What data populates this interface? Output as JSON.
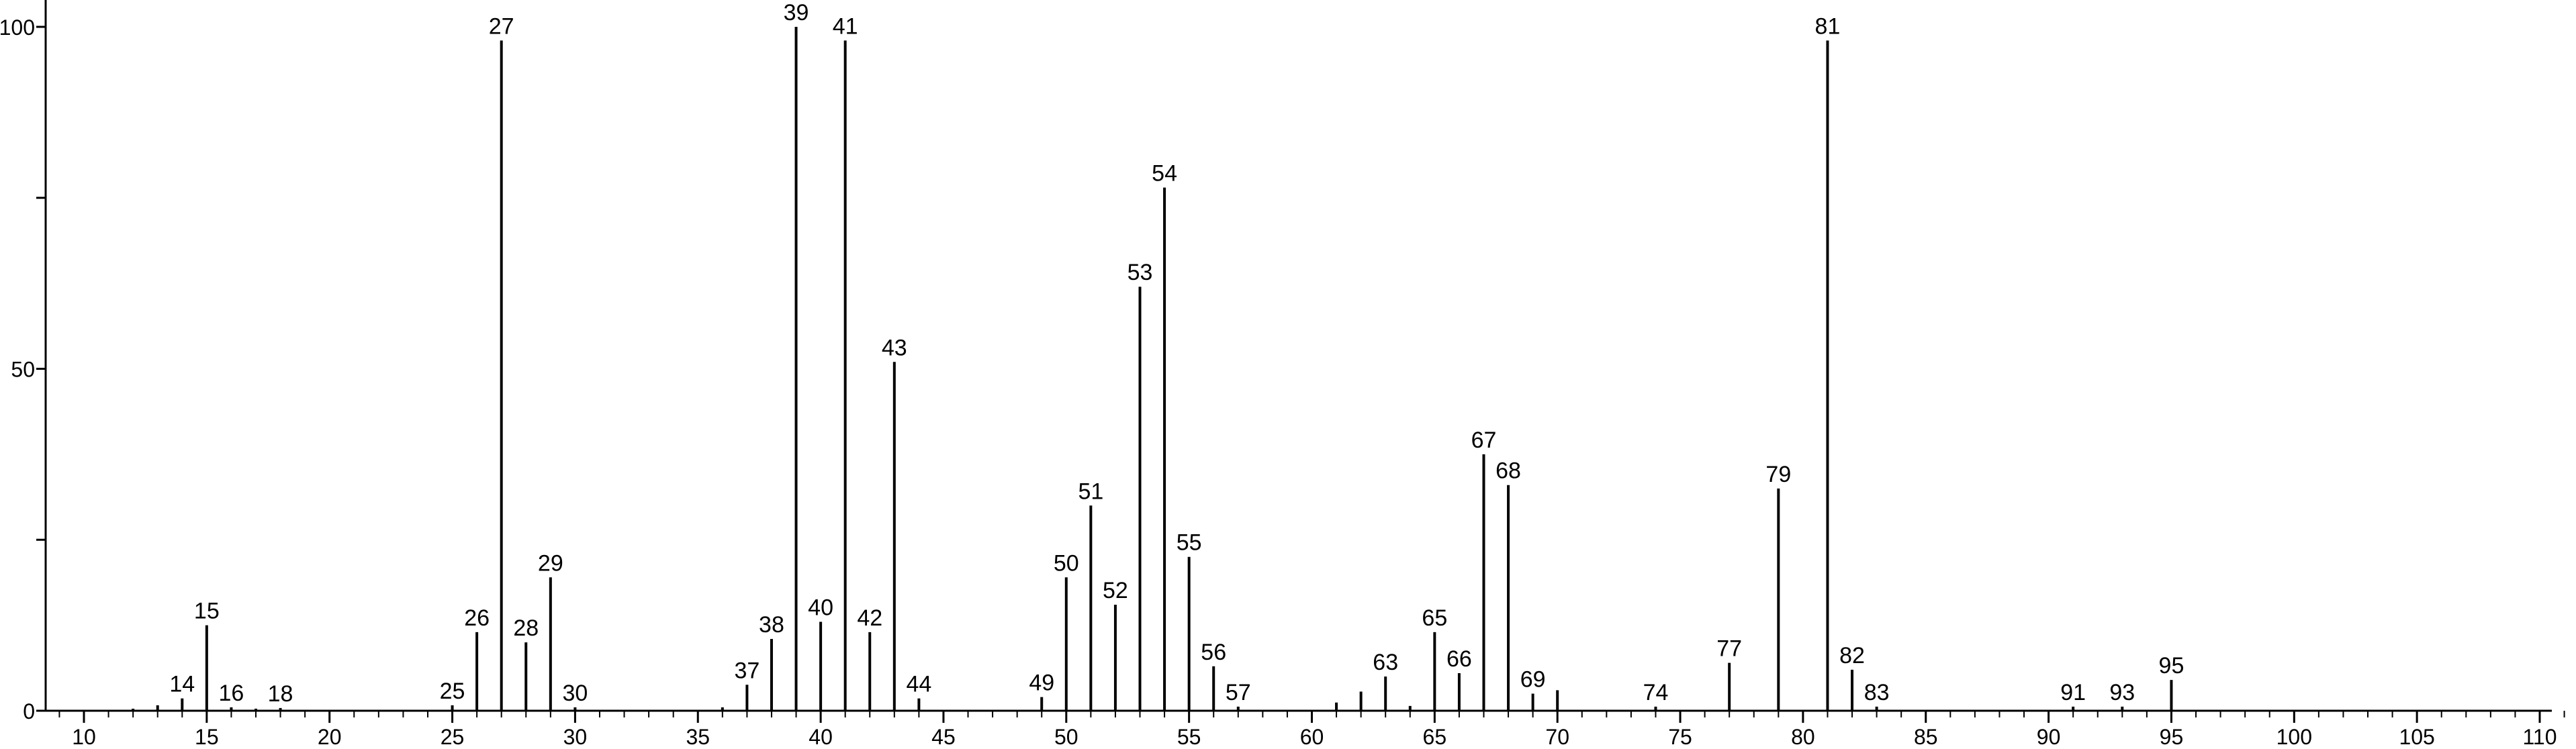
{
  "chart_data": {
    "type": "bar",
    "title": "",
    "xlabel": "",
    "ylabel": "",
    "xlim": [
      8.5,
      111.5
    ],
    "ylim": [
      0,
      100
    ],
    "x_ticks_major": [
      10,
      15,
      20,
      25,
      30,
      35,
      40,
      45,
      50,
      55,
      60,
      65,
      70,
      75,
      80,
      85,
      90,
      95,
      100,
      105,
      110
    ],
    "y_ticks_labeled": [
      0,
      50,
      100
    ],
    "grid": false,
    "legend": "none",
    "colors": {
      "stick": "#000000",
      "axis": "#000000",
      "background": "#ffffff"
    },
    "peaks": [
      {
        "x": 12,
        "y": 0.3,
        "label": ""
      },
      {
        "x": 13,
        "y": 0.8,
        "label": ""
      },
      {
        "x": 14,
        "y": 1.8,
        "label": "14"
      },
      {
        "x": 15,
        "y": 12.5,
        "label": "15"
      },
      {
        "x": 16,
        "y": 0.5,
        "label": "16"
      },
      {
        "x": 17,
        "y": 0.3,
        "label": ""
      },
      {
        "x": 18,
        "y": 0.4,
        "label": "18"
      },
      {
        "x": 25,
        "y": 0.8,
        "label": "25"
      },
      {
        "x": 26,
        "y": 11.5,
        "label": "26"
      },
      {
        "x": 27,
        "y": 98,
        "label": "27"
      },
      {
        "x": 28,
        "y": 10,
        "label": "28"
      },
      {
        "x": 29,
        "y": 19.5,
        "label": "29"
      },
      {
        "x": 30,
        "y": 0.5,
        "label": "30"
      },
      {
        "x": 36,
        "y": 0.5,
        "label": ""
      },
      {
        "x": 37,
        "y": 3.8,
        "label": "37"
      },
      {
        "x": 38,
        "y": 10.5,
        "label": "38"
      },
      {
        "x": 39,
        "y": 100,
        "label": "39"
      },
      {
        "x": 40,
        "y": 13,
        "label": "40"
      },
      {
        "x": 41,
        "y": 98,
        "label": "41"
      },
      {
        "x": 42,
        "y": 11.5,
        "label": "42"
      },
      {
        "x": 43,
        "y": 51,
        "label": "43"
      },
      {
        "x": 44,
        "y": 1.8,
        "label": "44"
      },
      {
        "x": 49,
        "y": 2,
        "label": "49"
      },
      {
        "x": 50,
        "y": 19.5,
        "label": "50"
      },
      {
        "x": 51,
        "y": 30,
        "label": "51"
      },
      {
        "x": 52,
        "y": 15.5,
        "label": "52"
      },
      {
        "x": 53,
        "y": 62,
        "label": "53"
      },
      {
        "x": 54,
        "y": 76.5,
        "label": "54"
      },
      {
        "x": 55,
        "y": 22.5,
        "label": "55"
      },
      {
        "x": 56,
        "y": 6.5,
        "label": "56"
      },
      {
        "x": 57,
        "y": 0.6,
        "label": "57"
      },
      {
        "x": 61,
        "y": 1.2,
        "label": ""
      },
      {
        "x": 62,
        "y": 2.8,
        "label": ""
      },
      {
        "x": 63,
        "y": 5,
        "label": "63"
      },
      {
        "x": 64,
        "y": 0.7,
        "label": ""
      },
      {
        "x": 65,
        "y": 11.5,
        "label": "65"
      },
      {
        "x": 66,
        "y": 5.5,
        "label": "66"
      },
      {
        "x": 67,
        "y": 37.5,
        "label": "67"
      },
      {
        "x": 68,
        "y": 33,
        "label": "68"
      },
      {
        "x": 69,
        "y": 2.5,
        "label": "69"
      },
      {
        "x": 70,
        "y": 3,
        "label": ""
      },
      {
        "x": 74,
        "y": 0.6,
        "label": "74"
      },
      {
        "x": 77,
        "y": 7,
        "label": "77"
      },
      {
        "x": 79,
        "y": 32.5,
        "label": "79"
      },
      {
        "x": 81,
        "y": 98,
        "label": "81"
      },
      {
        "x": 82,
        "y": 6,
        "label": "82"
      },
      {
        "x": 83,
        "y": 0.6,
        "label": "83"
      },
      {
        "x": 91,
        "y": 0.6,
        "label": "91"
      },
      {
        "x": 93,
        "y": 0.6,
        "label": "93"
      },
      {
        "x": 95,
        "y": 4.5,
        "label": "95"
      }
    ]
  }
}
